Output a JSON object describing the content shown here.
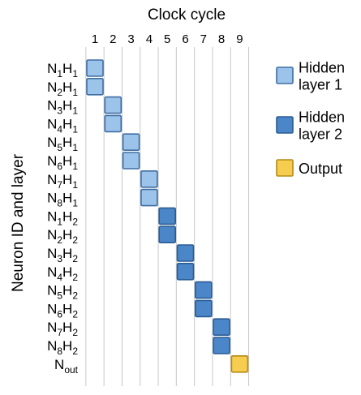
{
  "chart_data": {
    "type": "heatmap",
    "title": "Clock cycle",
    "ylabel": "Neuron ID and layer",
    "columns": [
      "1",
      "2",
      "3",
      "4",
      "5",
      "6",
      "7",
      "8",
      "9"
    ],
    "rows": [
      {
        "n": "N",
        "n_sub": "1",
        "h": "H",
        "h_sub": "1"
      },
      {
        "n": "N",
        "n_sub": "2",
        "h": "H",
        "h_sub": "1"
      },
      {
        "n": "N",
        "n_sub": "3",
        "h": "H",
        "h_sub": "1"
      },
      {
        "n": "N",
        "n_sub": "4",
        "h": "H",
        "h_sub": "1"
      },
      {
        "n": "N",
        "n_sub": "5",
        "h": "H",
        "h_sub": "1"
      },
      {
        "n": "N",
        "n_sub": "6",
        "h": "H",
        "h_sub": "1"
      },
      {
        "n": "N",
        "n_sub": "7",
        "h": "H",
        "h_sub": "1"
      },
      {
        "n": "N",
        "n_sub": "8",
        "h": "H",
        "h_sub": "1"
      },
      {
        "n": "N",
        "n_sub": "1",
        "h": "H",
        "h_sub": "2"
      },
      {
        "n": "N",
        "n_sub": "2",
        "h": "H",
        "h_sub": "2"
      },
      {
        "n": "N",
        "n_sub": "3",
        "h": "H",
        "h_sub": "2"
      },
      {
        "n": "N",
        "n_sub": "4",
        "h": "H",
        "h_sub": "2"
      },
      {
        "n": "N",
        "n_sub": "5",
        "h": "H",
        "h_sub": "2"
      },
      {
        "n": "N",
        "n_sub": "6",
        "h": "H",
        "h_sub": "2"
      },
      {
        "n": "N",
        "n_sub": "7",
        "h": "H",
        "h_sub": "2"
      },
      {
        "n": "N",
        "n_sub": "8",
        "h": "H",
        "h_sub": "2"
      },
      {
        "n": "N",
        "n_sub": "out",
        "h": "",
        "h_sub": ""
      }
    ],
    "cells": [
      {
        "row": 0,
        "col": 1,
        "group": 0
      },
      {
        "row": 1,
        "col": 1,
        "group": 0
      },
      {
        "row": 2,
        "col": 2,
        "group": 0
      },
      {
        "row": 3,
        "col": 2,
        "group": 0
      },
      {
        "row": 4,
        "col": 3,
        "group": 0
      },
      {
        "row": 5,
        "col": 3,
        "group": 0
      },
      {
        "row": 6,
        "col": 4,
        "group": 0
      },
      {
        "row": 7,
        "col": 4,
        "group": 0
      },
      {
        "row": 8,
        "col": 5,
        "group": 1
      },
      {
        "row": 9,
        "col": 5,
        "group": 1
      },
      {
        "row": 10,
        "col": 6,
        "group": 1
      },
      {
        "row": 11,
        "col": 6,
        "group": 1
      },
      {
        "row": 12,
        "col": 7,
        "group": 1
      },
      {
        "row": 13,
        "col": 7,
        "group": 1
      },
      {
        "row": 14,
        "col": 8,
        "group": 1
      },
      {
        "row": 15,
        "col": 8,
        "group": 1
      },
      {
        "row": 16,
        "col": 9,
        "group": 2
      }
    ],
    "legend": [
      {
        "lines": [
          "Hidden",
          "layer 1"
        ],
        "fill": "#9cc3e9",
        "stroke": "#3f6ea3"
      },
      {
        "lines": [
          "Hidden",
          "layer 2"
        ],
        "fill": "#4a86c8",
        "stroke": "#2b5c94"
      },
      {
        "lines": [
          "Output"
        ],
        "fill": "#f6cd4f",
        "stroke": "#b68a16"
      }
    ],
    "legend_position": "right",
    "grid": true
  }
}
